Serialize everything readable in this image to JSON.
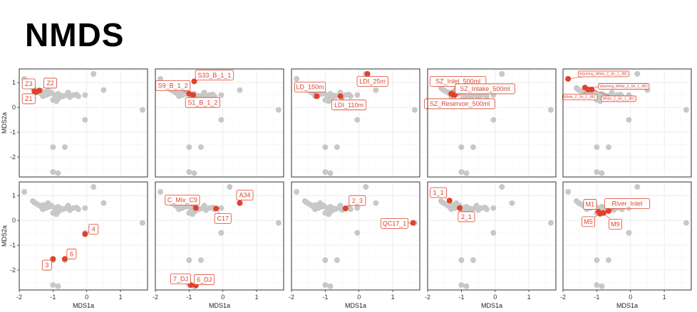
{
  "title": "NMDS",
  "chart_data": {
    "type": "scatter",
    "xlabel": "MDS1a",
    "ylabel": "MDS2a",
    "xlim": [
      -2.0,
      1.8
    ],
    "ylim": [
      -2.8,
      1.55
    ],
    "xticks": [
      -2,
      -1,
      0,
      1
    ],
    "yticks": [
      1,
      0,
      -1,
      -2
    ],
    "grid": true,
    "colors": {
      "background_points": "#c8c8c8",
      "highlight": "#e0412a",
      "panel_border": "#333333",
      "grid": "#ececec"
    },
    "background_points": [
      [
        -1.85,
        1.15
      ],
      [
        0.2,
        1.35
      ],
      [
        -1.6,
        0.78
      ],
      [
        -1.55,
        0.72
      ],
      [
        -1.5,
        0.68
      ],
      [
        -1.42,
        0.62
      ],
      [
        -1.35,
        0.55
      ],
      [
        -1.28,
        0.62
      ],
      [
        -1.2,
        0.5
      ],
      [
        -1.15,
        0.7
      ],
      [
        -1.05,
        0.6
      ],
      [
        -0.95,
        0.5
      ],
      [
        -0.85,
        0.55
      ],
      [
        -0.8,
        0.4
      ],
      [
        -0.75,
        0.48
      ],
      [
        -0.6,
        0.5
      ],
      [
        -0.5,
        0.42
      ],
      [
        -0.4,
        0.5
      ],
      [
        -0.25,
        0.45
      ],
      [
        -0.05,
        0.5
      ],
      [
        0.5,
        0.7
      ],
      [
        -1.3,
        0.45
      ],
      [
        -1.0,
        0.3
      ],
      [
        -0.9,
        0.25
      ],
      [
        -0.55,
        0.6
      ],
      [
        -0.7,
        0.45
      ],
      [
        -1.1,
        0.55
      ],
      [
        -0.85,
        0.35
      ],
      [
        -0.3,
        0.52
      ],
      [
        1.65,
        -0.1
      ],
      [
        -0.05,
        -0.5
      ],
      [
        -1.0,
        -1.6
      ],
      [
        -0.65,
        -1.6
      ],
      [
        -1.0,
        -2.6
      ],
      [
        -0.85,
        -2.65
      ]
    ],
    "panels": [
      {
        "row": 0,
        "col": 0,
        "labels_size": "normal",
        "points": [
          {
            "name": "Z3",
            "x": -1.55,
            "y": 0.65,
            "lx": -1.72,
            "ly": 0.95
          },
          {
            "name": "Z2",
            "x": -1.4,
            "y": 0.68,
            "lx": -1.08,
            "ly": 0.98
          },
          {
            "name": "Z1",
            "x": -1.5,
            "y": 0.62,
            "lx": -1.72,
            "ly": 0.35
          }
        ]
      },
      {
        "row": 0,
        "col": 1,
        "labels_size": "normal",
        "points": [
          {
            "name": "S33_B_1_1",
            "x": -0.85,
            "y": 1.05,
            "lx": -0.25,
            "ly": 1.3
          },
          {
            "name": "S9_B_1_2",
            "x": -1.0,
            "y": 0.55,
            "lx": -1.48,
            "ly": 0.88
          },
          {
            "name": "S1_B_1_2",
            "x": -0.88,
            "y": 0.5,
            "lx": -0.6,
            "ly": 0.2
          }
        ]
      },
      {
        "row": 0,
        "col": 2,
        "labels_size": "normal",
        "points": [
          {
            "name": "LDI_25m",
            "x": 0.25,
            "y": 1.35,
            "lx": 0.4,
            "ly": 1.05
          },
          {
            "name": "LD_150m",
            "x": -1.25,
            "y": 0.45,
            "lx": -1.45,
            "ly": 0.82
          },
          {
            "name": "LDI_110m",
            "x": -0.55,
            "y": 0.45,
            "lx": -0.3,
            "ly": 0.1
          }
        ]
      },
      {
        "row": 0,
        "col": 3,
        "labels_size": "normal",
        "points": [
          {
            "name": "SZ_Inlet_500ml",
            "x": -1.3,
            "y": 0.55,
            "lx": -1.1,
            "ly": 1.05
          },
          {
            "name": "SZ_Intake_500ml",
            "x": -1.2,
            "y": 0.5,
            "lx": -0.3,
            "ly": 0.75
          },
          {
            "name": "SZ_Reservoir_500ml",
            "x": -1.25,
            "y": 0.52,
            "lx": -1.05,
            "ly": 0.15
          }
        ]
      },
      {
        "row": 0,
        "col": 4,
        "labels_size": "small",
        "points": [
          {
            "name": "Warming_White_Z_Sh_1_JBC",
            "x": -1.85,
            "y": 1.15,
            "lx": -0.8,
            "ly": 1.35
          },
          {
            "name": "Warming_White_Z_Sh_1_JBC",
            "x": -1.35,
            "y": 0.8,
            "lx": -0.2,
            "ly": 0.85
          },
          {
            "name": "White_Z_Sh_2_JBC",
            "x": -1.25,
            "y": 0.72,
            "lx": -1.5,
            "ly": 0.42
          },
          {
            "name": "White_Z_Sh_1_JBC",
            "x": -1.15,
            "y": 0.72,
            "lx": -0.35,
            "ly": 0.35
          }
        ]
      },
      {
        "row": 1,
        "col": 0,
        "labels_size": "normal",
        "points": [
          {
            "name": "4",
            "x": -0.05,
            "y": -0.55,
            "lx": 0.2,
            "ly": -0.35
          },
          {
            "name": "6",
            "x": -0.65,
            "y": -1.55,
            "lx": -0.45,
            "ly": -1.35
          },
          {
            "name": "3",
            "x": -1.0,
            "y": -1.55,
            "lx": -1.18,
            "ly": -1.8
          }
        ]
      },
      {
        "row": 1,
        "col": 1,
        "labels_size": "normal",
        "points": [
          {
            "name": "A34",
            "x": 0.5,
            "y": 0.7,
            "lx": 0.65,
            "ly": 1.02
          },
          {
            "name": "C_Mix_C9",
            "x": -0.8,
            "y": 0.5,
            "lx": -1.2,
            "ly": 0.82
          },
          {
            "name": "C17",
            "x": -0.2,
            "y": 0.48,
            "lx": 0.0,
            "ly": 0.08
          },
          {
            "name": "7_DJ",
            "x": -0.95,
            "y": -2.6,
            "lx": -1.25,
            "ly": -2.35
          },
          {
            "name": "6_DJ",
            "x": -0.8,
            "y": -2.62,
            "lx": -0.55,
            "ly": -2.38
          }
        ]
      },
      {
        "row": 1,
        "col": 2,
        "labels_size": "normal",
        "points": [
          {
            "name": "2_3",
            "x": -0.4,
            "y": 0.48,
            "lx": -0.05,
            "ly": 0.8
          },
          {
            "name": "QC17_1",
            "x": 1.6,
            "y": -0.1,
            "lx": 1.05,
            "ly": -0.12
          }
        ]
      },
      {
        "row": 1,
        "col": 3,
        "labels_size": "normal",
        "points": [
          {
            "name": "1_1",
            "x": -1.35,
            "y": 0.8,
            "lx": -1.68,
            "ly": 1.12
          },
          {
            "name": "2_1",
            "x": -1.05,
            "y": 0.5,
            "lx": -0.85,
            "ly": 0.15
          }
        ]
      },
      {
        "row": 1,
        "col": 4,
        "labels_size": "normal",
        "points": [
          {
            "name": "M1",
            "x": -0.95,
            "y": 0.35,
            "lx": -1.2,
            "ly": 0.65
          },
          {
            "name": "River_Inlet",
            "x": -0.65,
            "y": 0.38,
            "lx": -0.1,
            "ly": 0.68
          },
          {
            "name": "M5",
            "x": -0.9,
            "y": 0.28,
            "lx": -1.25,
            "ly": -0.05
          },
          {
            "name": "M9",
            "x": -0.8,
            "y": 0.3,
            "lx": -0.45,
            "ly": -0.15
          }
        ]
      }
    ]
  }
}
